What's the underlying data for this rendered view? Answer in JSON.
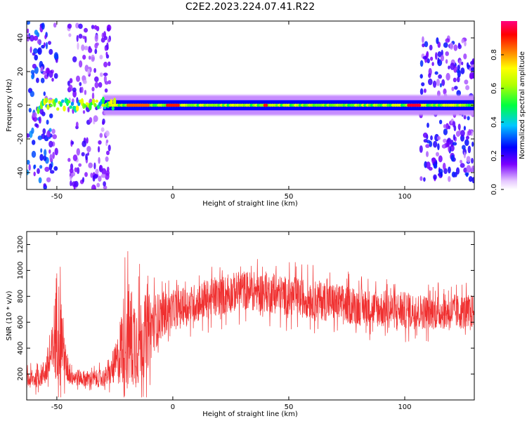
{
  "title": "C2E2.2023.224.07.41.R22",
  "chart_data": [
    {
      "type": "heatmap",
      "title": "",
      "xlabel": "Height of straight line (km)",
      "ylabel": "Frequency (Hz)",
      "xlim": [
        -63,
        130
      ],
      "ylim": [
        -50,
        50
      ],
      "x_ticks": [
        -50,
        0,
        50,
        100
      ],
      "y_ticks": [
        -40,
        -20,
        0,
        20,
        40
      ],
      "colorbar": {
        "label": "Normalized spectral amplitude",
        "range": [
          0.0,
          1.0
        ],
        "ticks": [
          "0.0",
          "0.2",
          "0.4",
          "0.6",
          "0.8"
        ]
      },
      "features": {
        "central_band": {
          "x": [
            -30,
            130
          ],
          "frequency": 0,
          "half_width_hz": 3,
          "amplitude": 0.6
        },
        "broad_scatter_regions": [
          {
            "x": [
              -63,
              -50
            ],
            "frequency_range": [
              -50,
              50
            ],
            "amplitude": 0.25
          },
          {
            "x": [
              -45,
              -27
            ],
            "frequency_range": [
              -50,
              50
            ],
            "amplitude": 0.15
          },
          {
            "x": [
              107,
              130
            ],
            "frequency_range": [
              -45,
              40
            ],
            "amplitude": 0.2
          }
        ],
        "high_amplitude_segments": [
          {
            "x": [
              -20,
              -10
            ],
            "amplitude": 0.85
          },
          {
            "x": [
              -3,
              3
            ],
            "amplitude": 0.9
          },
          {
            "x": [
              39,
              41
            ],
            "amplitude": 0.9
          },
          {
            "x": [
              101,
              107
            ],
            "amplitude": 0.95
          }
        ]
      }
    },
    {
      "type": "line",
      "title": "",
      "xlabel": "Height of straight line (km)",
      "ylabel": "SNR (10 * v/v)",
      "xlim": [
        -63,
        130
      ],
      "ylim": [
        0,
        1300
      ],
      "x_ticks": [
        -50,
        0,
        50,
        100
      ],
      "y_ticks": [
        200,
        400,
        600,
        800,
        1000,
        1200
      ],
      "series": [
        {
          "color": "#f03030",
          "x": [
            -63,
            -58,
            -55,
            -52,
            -50,
            -48,
            -46,
            -43,
            -40,
            -35,
            -30,
            -27,
            -24,
            -22,
            -20,
            -18,
            -15,
            -12,
            -8,
            -5,
            0,
            5,
            10,
            20,
            30,
            40,
            50,
            60,
            70,
            80,
            90,
            100,
            110,
            120,
            130
          ],
          "mean": [
            150,
            170,
            220,
            350,
            600,
            500,
            250,
            180,
            170,
            160,
            170,
            200,
            300,
            420,
            500,
            480,
            450,
            500,
            600,
            650,
            700,
            720,
            750,
            800,
            850,
            830,
            800,
            780,
            750,
            720,
            700,
            690,
            680,
            680,
            680
          ],
          "spread": [
            80,
            80,
            120,
            250,
            500,
            350,
            150,
            80,
            70,
            70,
            80,
            100,
            200,
            350,
            500,
            450,
            400,
            350,
            250,
            200,
            150,
            160,
            170,
            170,
            170,
            170,
            170,
            170,
            170,
            160,
            160,
            160,
            150,
            150,
            150
          ]
        }
      ]
    }
  ]
}
